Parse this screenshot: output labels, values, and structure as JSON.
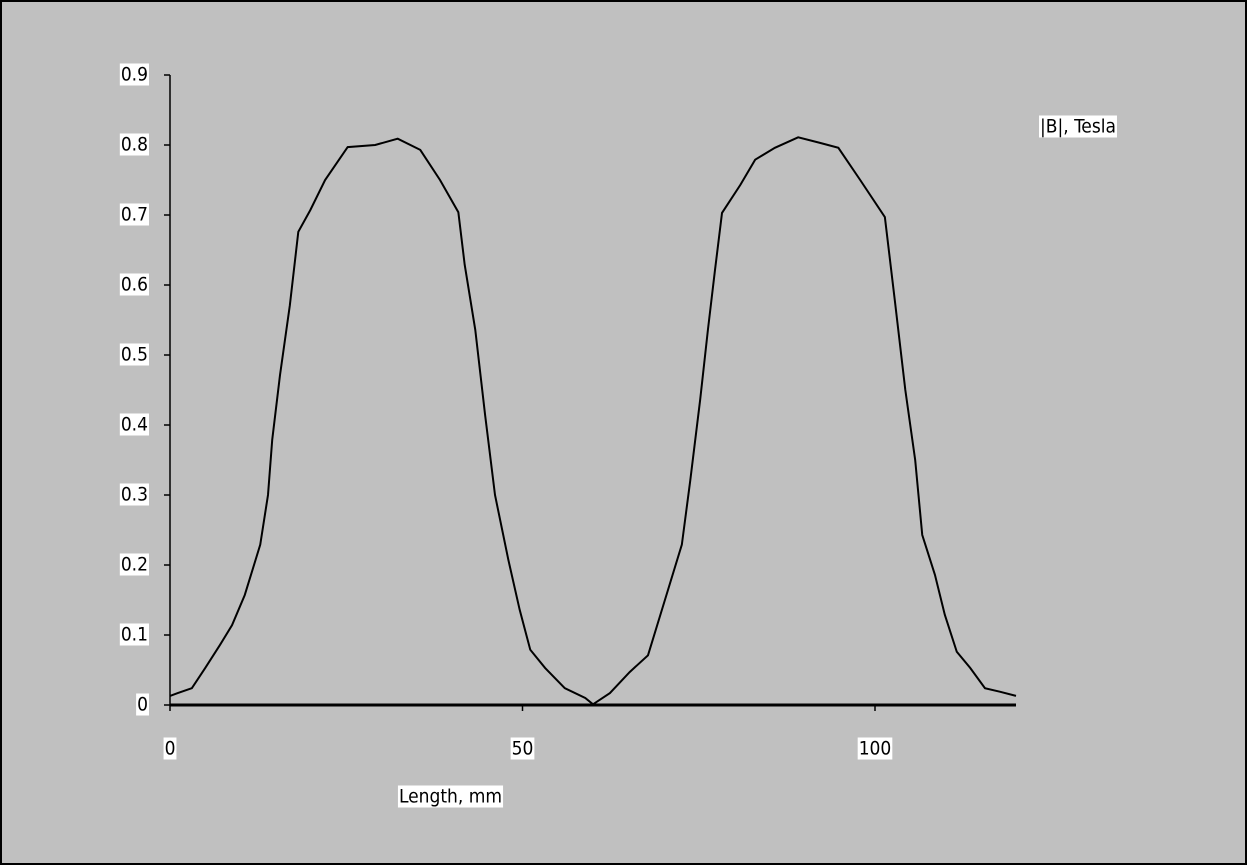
{
  "chart_data": {
    "type": "line",
    "x_label": "Length, mm",
    "series": [
      {
        "name": "|B|, Tesla",
        "color": "#000000",
        "x": [
          0,
          1.1,
          3.1,
          5,
          7.1,
          8.8,
          10.6,
          12.8,
          13.9,
          14.5,
          15.6,
          17,
          18.2,
          19.9,
          22,
          25.2,
          29.1,
          32.3,
          35.5,
          38.3,
          40.9,
          41.8,
          43.3,
          44.7,
          46.1,
          48,
          49.6,
          51.1,
          53.2,
          56,
          58.9,
          60,
          62.4,
          65.2,
          67.8,
          70.2,
          72.6,
          73.8,
          75.2,
          76.3,
          77.3,
          78.3,
          80.9,
          83,
          85.8,
          89.1,
          92.2,
          94.8,
          97.9,
          101.4,
          102.8,
          104.3,
          105.7,
          106.7,
          108.5,
          109.9,
          111.6,
          113.5,
          115.6,
          117.7,
          120
        ],
        "values": [
          0.013,
          0.017,
          0.024,
          0.053,
          0.086,
          0.114,
          0.157,
          0.229,
          0.3,
          0.379,
          0.471,
          0.571,
          0.676,
          0.707,
          0.75,
          0.797,
          0.8,
          0.809,
          0.793,
          0.75,
          0.704,
          0.629,
          0.536,
          0.414,
          0.3,
          0.207,
          0.136,
          0.079,
          0.053,
          0.024,
          0.01,
          0.001,
          0.017,
          0.047,
          0.071,
          0.15,
          0.229,
          0.321,
          0.436,
          0.536,
          0.621,
          0.703,
          0.743,
          0.779,
          0.796,
          0.811,
          0.803,
          0.796,
          0.75,
          0.697,
          0.579,
          0.45,
          0.35,
          0.243,
          0.186,
          0.129,
          0.076,
          0.053,
          0.024,
          0.019,
          0.013
        ]
      }
    ],
    "xlim": [
      0,
      120
    ],
    "xticks": [
      0,
      50,
      100
    ],
    "ylim": [
      0,
      0.9
    ],
    "yticks": [
      0,
      0.1,
      0.2,
      0.3,
      0.4,
      0.5,
      0.6,
      0.7,
      0.8,
      0.9
    ],
    "legend": "top-right",
    "grid": false
  }
}
